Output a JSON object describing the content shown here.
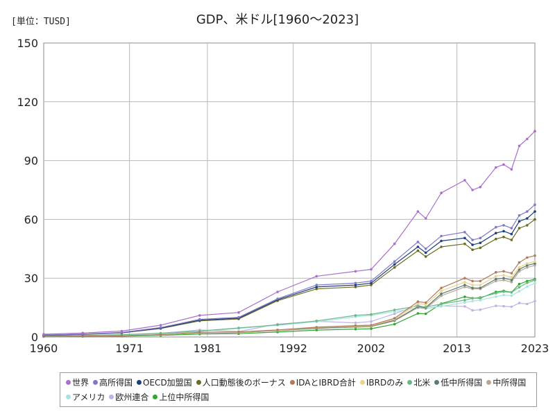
{
  "header": {
    "unit_label": "[単位：TUSD]",
    "title": "GDP、米ドル[1960～2023]"
  },
  "chart_data": {
    "type": "line",
    "title": "GDP、米ドル[1960～2023]",
    "ylabel": "",
    "xlabel": "",
    "xlim": [
      1960,
      2023
    ],
    "ylim": [
      0,
      150
    ],
    "x_ticks": [
      "1960",
      "1971",
      "1981",
      "1992",
      "2002",
      "2013",
      "2023"
    ],
    "y_ticks": [
      "0",
      "30",
      "60",
      "90",
      "120",
      "150"
    ],
    "grid": true,
    "legend_position": "bottom",
    "series": [
      {
        "name": "世界",
        "color": "#a86fcb",
        "points": [
          [
            1960,
            1.4
          ],
          [
            1965,
            2.0
          ],
          [
            1970,
            3.0
          ],
          [
            1975,
            6.0
          ],
          [
            1980,
            11.0
          ],
          [
            1985,
            12.5
          ],
          [
            1990,
            23.0
          ],
          [
            1995,
            31.0
          ],
          [
            2000,
            33.5
          ],
          [
            2002,
            34.5
          ],
          [
            2005,
            47.5
          ],
          [
            2008,
            64.0
          ],
          [
            2009,
            60.5
          ],
          [
            2011,
            73.5
          ],
          [
            2014,
            80.0
          ],
          [
            2015,
            75.0
          ],
          [
            2016,
            76.5
          ],
          [
            2018,
            86.5
          ],
          [
            2019,
            88.0
          ],
          [
            2020,
            85.5
          ],
          [
            2021,
            97.5
          ],
          [
            2022,
            101.0
          ],
          [
            2023,
            105.0
          ]
        ]
      },
      {
        "name": "高所得国",
        "color": "#8078c8",
        "points": [
          [
            1960,
            1.0
          ],
          [
            1965,
            1.5
          ],
          [
            1970,
            2.3
          ],
          [
            1975,
            4.8
          ],
          [
            1980,
            9.0
          ],
          [
            1985,
            10.0
          ],
          [
            1990,
            19.5
          ],
          [
            1995,
            26.5
          ],
          [
            2000,
            27.5
          ],
          [
            2002,
            28.5
          ],
          [
            2005,
            38.5
          ],
          [
            2008,
            48.5
          ],
          [
            2009,
            45.0
          ],
          [
            2011,
            51.5
          ],
          [
            2014,
            53.5
          ],
          [
            2015,
            49.5
          ],
          [
            2016,
            50.5
          ],
          [
            2018,
            56.0
          ],
          [
            2019,
            57.0
          ],
          [
            2020,
            55.5
          ],
          [
            2021,
            62.0
          ],
          [
            2022,
            64.0
          ],
          [
            2023,
            67.5
          ]
        ]
      },
      {
        "name": "OECD加盟国",
        "color": "#1f3f78",
        "points": [
          [
            1960,
            0.9
          ],
          [
            1965,
            1.4
          ],
          [
            1970,
            2.2
          ],
          [
            1975,
            4.5
          ],
          [
            1980,
            8.6
          ],
          [
            1985,
            9.6
          ],
          [
            1990,
            19.0
          ],
          [
            1995,
            25.5
          ],
          [
            2000,
            26.5
          ],
          [
            2002,
            27.5
          ],
          [
            2005,
            37.0
          ],
          [
            2008,
            46.0
          ],
          [
            2009,
            43.0
          ],
          [
            2011,
            49.0
          ],
          [
            2014,
            50.5
          ],
          [
            2015,
            47.0
          ],
          [
            2016,
            48.0
          ],
          [
            2018,
            53.0
          ],
          [
            2019,
            54.0
          ],
          [
            2020,
            52.5
          ],
          [
            2021,
            59.0
          ],
          [
            2022,
            60.5
          ],
          [
            2023,
            64.0
          ]
        ]
      },
      {
        "name": "人口動態後のボーナス",
        "color": "#6b6b1f",
        "points": [
          [
            1960,
            0.9
          ],
          [
            1965,
            1.3
          ],
          [
            1970,
            2.1
          ],
          [
            1975,
            4.3
          ],
          [
            1980,
            8.2
          ],
          [
            1985,
            9.2
          ],
          [
            1990,
            18.5
          ],
          [
            1995,
            24.5
          ],
          [
            2000,
            25.5
          ],
          [
            2002,
            26.5
          ],
          [
            2005,
            35.5
          ],
          [
            2008,
            44.0
          ],
          [
            2009,
            41.0
          ],
          [
            2011,
            46.0
          ],
          [
            2014,
            47.5
          ],
          [
            2015,
            44.5
          ],
          [
            2016,
            45.5
          ],
          [
            2018,
            50.0
          ],
          [
            2019,
            51.0
          ],
          [
            2020,
            49.5
          ],
          [
            2021,
            55.5
          ],
          [
            2022,
            57.0
          ],
          [
            2023,
            60.0
          ]
        ]
      },
      {
        "name": "IDAとIBRD合計",
        "color": "#b07a5e",
        "points": [
          [
            1960,
            0.3
          ],
          [
            1965,
            0.4
          ],
          [
            1970,
            0.6
          ],
          [
            1975,
            1.2
          ],
          [
            1980,
            2.4
          ],
          [
            1985,
            2.6
          ],
          [
            1990,
            3.6
          ],
          [
            1995,
            5.0
          ],
          [
            2000,
            5.8
          ],
          [
            2002,
            6.0
          ],
          [
            2005,
            9.5
          ],
          [
            2008,
            18.0
          ],
          [
            2009,
            17.5
          ],
          [
            2011,
            25.0
          ],
          [
            2014,
            30.0
          ],
          [
            2015,
            28.5
          ],
          [
            2016,
            28.5
          ],
          [
            2018,
            33.0
          ],
          [
            2019,
            33.5
          ],
          [
            2020,
            32.5
          ],
          [
            2021,
            38.0
          ],
          [
            2022,
            40.5
          ],
          [
            2023,
            41.5
          ]
        ]
      },
      {
        "name": "IBRDのみ",
        "color": "#e8d48a",
        "points": [
          [
            1960,
            0.3
          ],
          [
            1965,
            0.4
          ],
          [
            1970,
            0.55
          ],
          [
            1975,
            1.1
          ],
          [
            1980,
            2.2
          ],
          [
            1985,
            2.4
          ],
          [
            1990,
            3.4
          ],
          [
            1995,
            4.8
          ],
          [
            2000,
            5.5
          ],
          [
            2002,
            5.7
          ],
          [
            2005,
            9.0
          ],
          [
            2008,
            17.0
          ],
          [
            2009,
            16.5
          ],
          [
            2011,
            23.5
          ],
          [
            2014,
            28.0
          ],
          [
            2015,
            26.5
          ],
          [
            2016,
            26.5
          ],
          [
            2018,
            31.0
          ],
          [
            2019,
            31.5
          ],
          [
            2020,
            30.5
          ],
          [
            2021,
            35.5
          ],
          [
            2022,
            37.5
          ],
          [
            2023,
            38.5
          ]
        ]
      },
      {
        "name": "北米",
        "color": "#6ab88a",
        "points": [
          [
            1960,
            0.6
          ],
          [
            1965,
            0.8
          ],
          [
            1970,
            1.2
          ],
          [
            1975,
            1.9
          ],
          [
            1980,
            3.0
          ],
          [
            1985,
            4.6
          ],
          [
            1990,
            6.2
          ],
          [
            1995,
            8.2
          ],
          [
            2000,
            11.0
          ],
          [
            2002,
            11.5
          ],
          [
            2005,
            13.8
          ],
          [
            2008,
            15.8
          ],
          [
            2009,
            15.3
          ],
          [
            2011,
            16.8
          ],
          [
            2014,
            18.8
          ],
          [
            2015,
            19.7
          ],
          [
            2016,
            20.2
          ],
          [
            2018,
            22.3
          ],
          [
            2019,
            23.1
          ],
          [
            2020,
            22.7
          ],
          [
            2021,
            25.4
          ],
          [
            2022,
            27.6
          ],
          [
            2023,
            29.0
          ]
        ]
      },
      {
        "name": "低中所得国",
        "color": "#5c7a7a",
        "points": [
          [
            1960,
            0.3
          ],
          [
            1965,
            0.4
          ],
          [
            1970,
            0.55
          ],
          [
            1975,
            1.1
          ],
          [
            1980,
            2.1
          ],
          [
            1985,
            2.3
          ],
          [
            1990,
            3.3
          ],
          [
            1995,
            4.5
          ],
          [
            2000,
            5.2
          ],
          [
            2002,
            5.5
          ],
          [
            2005,
            8.5
          ],
          [
            2008,
            15.5
          ],
          [
            2009,
            15.0
          ],
          [
            2011,
            22.0
          ],
          [
            2014,
            26.5
          ],
          [
            2015,
            25.0
          ],
          [
            2016,
            25.0
          ],
          [
            2018,
            29.5
          ],
          [
            2019,
            30.0
          ],
          [
            2020,
            29.0
          ],
          [
            2021,
            34.5
          ],
          [
            2022,
            36.5
          ],
          [
            2023,
            37.5
          ]
        ]
      },
      {
        "name": "中所得国",
        "color": "#b8a890",
        "points": [
          [
            1960,
            0.3
          ],
          [
            1965,
            0.4
          ],
          [
            1970,
            0.55
          ],
          [
            1975,
            1.1
          ],
          [
            1980,
            2.1
          ],
          [
            1985,
            2.3
          ],
          [
            1990,
            3.2
          ],
          [
            1995,
            4.4
          ],
          [
            2000,
            5.0
          ],
          [
            2002,
            5.3
          ],
          [
            2005,
            8.2
          ],
          [
            2008,
            15.0
          ],
          [
            2009,
            14.5
          ],
          [
            2011,
            21.0
          ],
          [
            2014,
            25.5
          ],
          [
            2015,
            24.5
          ],
          [
            2016,
            24.5
          ],
          [
            2018,
            28.5
          ],
          [
            2019,
            29.0
          ],
          [
            2020,
            28.0
          ],
          [
            2021,
            33.5
          ],
          [
            2022,
            35.5
          ],
          [
            2023,
            36.5
          ]
        ]
      },
      {
        "name": "アメリカ",
        "color": "#a8e4dc",
        "points": [
          [
            1960,
            0.55
          ],
          [
            1965,
            0.75
          ],
          [
            1970,
            1.1
          ],
          [
            1975,
            1.7
          ],
          [
            1980,
            2.9
          ],
          [
            1985,
            4.3
          ],
          [
            1990,
            6.0
          ],
          [
            1995,
            7.7
          ],
          [
            2000,
            10.3
          ],
          [
            2002,
            11.0
          ],
          [
            2005,
            13.0
          ],
          [
            2008,
            14.8
          ],
          [
            2009,
            14.5
          ],
          [
            2011,
            15.6
          ],
          [
            2014,
            17.6
          ],
          [
            2015,
            18.3
          ],
          [
            2016,
            18.8
          ],
          [
            2018,
            20.6
          ],
          [
            2019,
            21.4
          ],
          [
            2020,
            21.1
          ],
          [
            2021,
            23.3
          ],
          [
            2022,
            25.7
          ],
          [
            2023,
            27.4
          ]
        ]
      },
      {
        "name": "欧州連合",
        "color": "#bdb4e6",
        "points": [
          [
            1960,
            0.4
          ],
          [
            1965,
            0.6
          ],
          [
            1970,
            0.9
          ],
          [
            1975,
            1.9
          ],
          [
            1980,
            3.6
          ],
          [
            1985,
            2.8
          ],
          [
            1990,
            6.5
          ],
          [
            1995,
            8.0
          ],
          [
            2000,
            7.2
          ],
          [
            2002,
            7.9
          ],
          [
            2005,
            11.8
          ],
          [
            2008,
            16.3
          ],
          [
            2009,
            14.6
          ],
          [
            2011,
            15.8
          ],
          [
            2014,
            15.6
          ],
          [
            2015,
            13.6
          ],
          [
            2016,
            13.9
          ],
          [
            2018,
            15.9
          ],
          [
            2019,
            15.7
          ],
          [
            2020,
            15.4
          ],
          [
            2021,
            17.3
          ],
          [
            2022,
            16.8
          ],
          [
            2023,
            18.3
          ]
        ]
      },
      {
        "name": "上位中所得国",
        "color": "#2ea82e",
        "points": [
          [
            1960,
            0.2
          ],
          [
            1965,
            0.3
          ],
          [
            1970,
            0.4
          ],
          [
            1975,
            0.8
          ],
          [
            1980,
            1.5
          ],
          [
            1985,
            1.7
          ],
          [
            1990,
            2.5
          ],
          [
            1995,
            3.5
          ],
          [
            2000,
            4.0
          ],
          [
            2002,
            4.2
          ],
          [
            2005,
            6.5
          ],
          [
            2008,
            12.0
          ],
          [
            2009,
            11.8
          ],
          [
            2011,
            17.0
          ],
          [
            2014,
            20.5
          ],
          [
            2015,
            19.8
          ],
          [
            2016,
            19.8
          ],
          [
            2018,
            23.0
          ],
          [
            2019,
            23.5
          ],
          [
            2020,
            22.8
          ],
          [
            2021,
            27.0
          ],
          [
            2022,
            28.5
          ],
          [
            2023,
            29.5
          ]
        ]
      }
    ]
  }
}
